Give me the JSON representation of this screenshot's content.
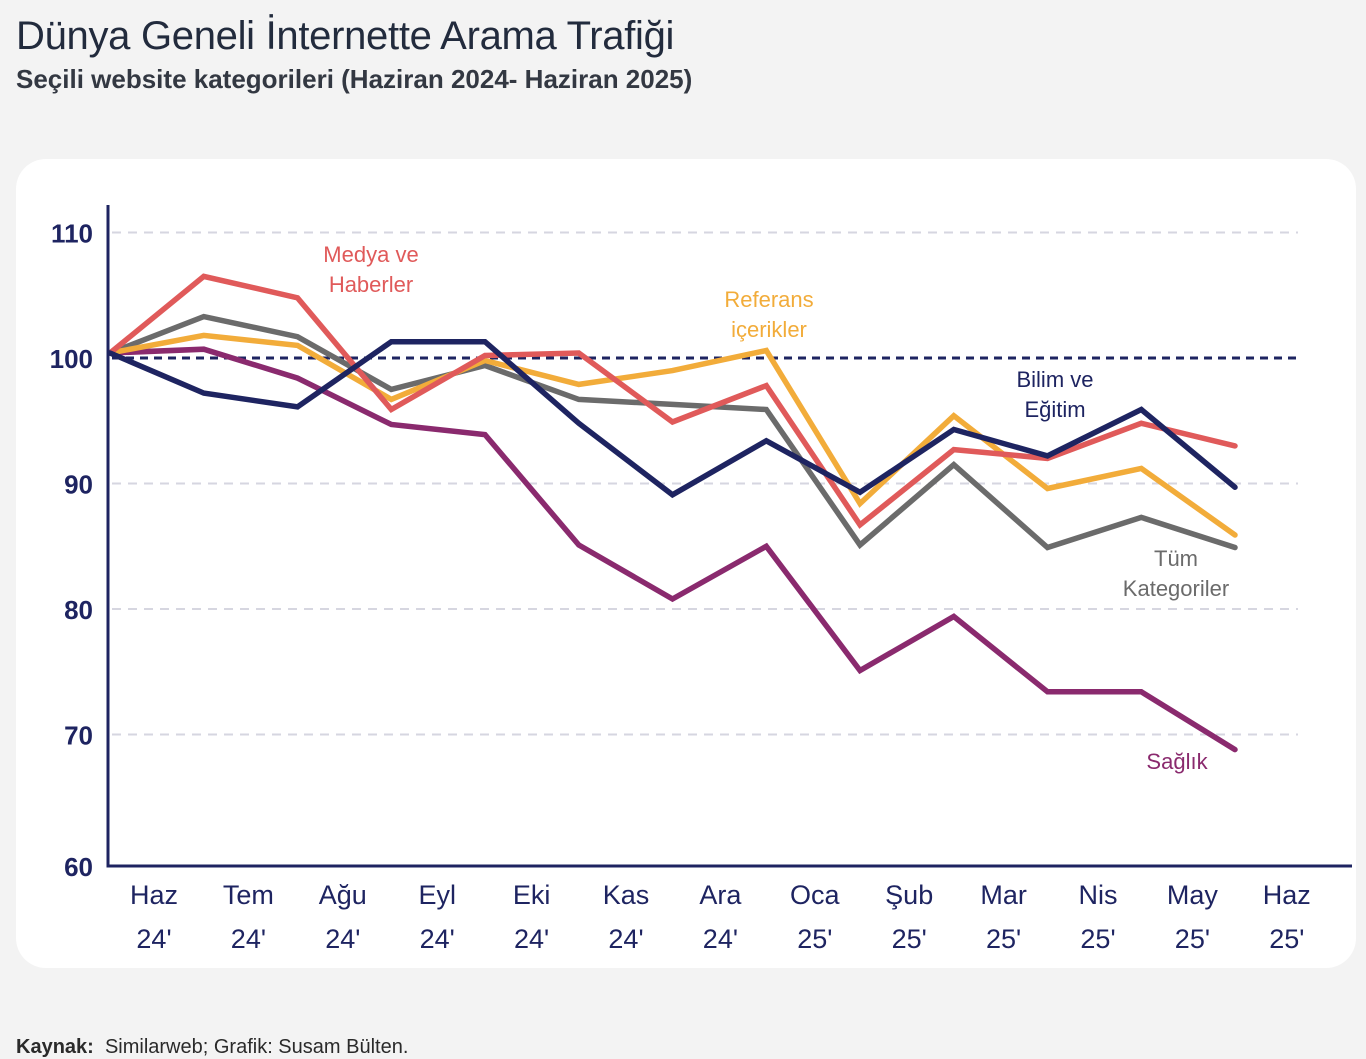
{
  "header": {
    "title": "Dünya Geneli İnternette Arama Trafiği",
    "subtitle": "Seçili website kategorileri (Haziran 2024- Haziran 2025)"
  },
  "footer": {
    "source_label": "Kaynak:",
    "source_text": "Similarweb; Grafik: Susam Bülten."
  },
  "chart_data": {
    "type": "line",
    "title": "Dünya Geneli İnternette Arama Trafiği",
    "subtitle": "Seçili website kategorileri (Haziran 2024- Haziran 2025)",
    "xlabel": "",
    "ylabel": "",
    "ylim": [
      60,
      110
    ],
    "yticks": [
      60,
      70,
      80,
      90,
      100,
      110
    ],
    "reference_line": 100,
    "grid": true,
    "categories": [
      {
        "month": "Haz",
        "year": "24'"
      },
      {
        "month": "Tem",
        "year": "24'"
      },
      {
        "month": "Ağu",
        "year": "24'"
      },
      {
        "month": "Eyl",
        "year": "24'"
      },
      {
        "month": "Eki",
        "year": "24'"
      },
      {
        "month": "Kas",
        "year": "24'"
      },
      {
        "month": "Ara",
        "year": "24'"
      },
      {
        "month": "Oca",
        "year": "25'"
      },
      {
        "month": "Şub",
        "year": "25'"
      },
      {
        "month": "Mar",
        "year": "25'"
      },
      {
        "month": "Nis",
        "year": "25'"
      },
      {
        "month": "May",
        "year": "25'"
      },
      {
        "month": "Haz",
        "year": "25'"
      }
    ],
    "series": [
      {
        "name": "Medya ve Haberler",
        "label_lines": [
          "Medya ve",
          "Haberler"
        ],
        "color": "#e05a5a",
        "values": [
          100.4,
          106.5,
          104.8,
          95.9,
          100.2,
          100.4,
          94.9,
          97.8,
          86.7,
          92.7,
          92.0,
          94.8,
          93.0
        ]
      },
      {
        "name": "Tüm Kategoriler",
        "label_lines": [
          "Tüm",
          "Kategoriler"
        ],
        "color": "#6b6b6b",
        "values": [
          100.4,
          103.3,
          101.7,
          97.5,
          99.4,
          96.7,
          96.3,
          95.9,
          85.1,
          91.5,
          84.9,
          87.3,
          84.9
        ]
      },
      {
        "name": "Referans içerikler",
        "label_lines": [
          "Referans",
          "içerikler"
        ],
        "color": "#f2ac3a",
        "values": [
          100.4,
          101.8,
          101.0,
          96.7,
          99.8,
          97.9,
          99.0,
          100.6,
          88.4,
          95.4,
          89.6,
          91.2,
          85.9
        ]
      },
      {
        "name": "Bilim ve Eğitim",
        "label_lines": [
          "Bilim ve",
          "Eğitim"
        ],
        "color": "#1e2461",
        "values": [
          100.4,
          97.2,
          96.1,
          101.3,
          101.3,
          94.8,
          89.1,
          93.4,
          89.3,
          94.3,
          92.2,
          95.9,
          89.7
        ]
      },
      {
        "name": "Sağlık",
        "label_lines": [
          "Sağlık"
        ],
        "color": "#8a2a6e",
        "values": [
          100.4,
          100.7,
          98.4,
          94.7,
          93.9,
          85.1,
          80.8,
          85.0,
          75.1,
          79.4,
          73.4,
          73.4,
          68.8
        ]
      }
    ]
  }
}
